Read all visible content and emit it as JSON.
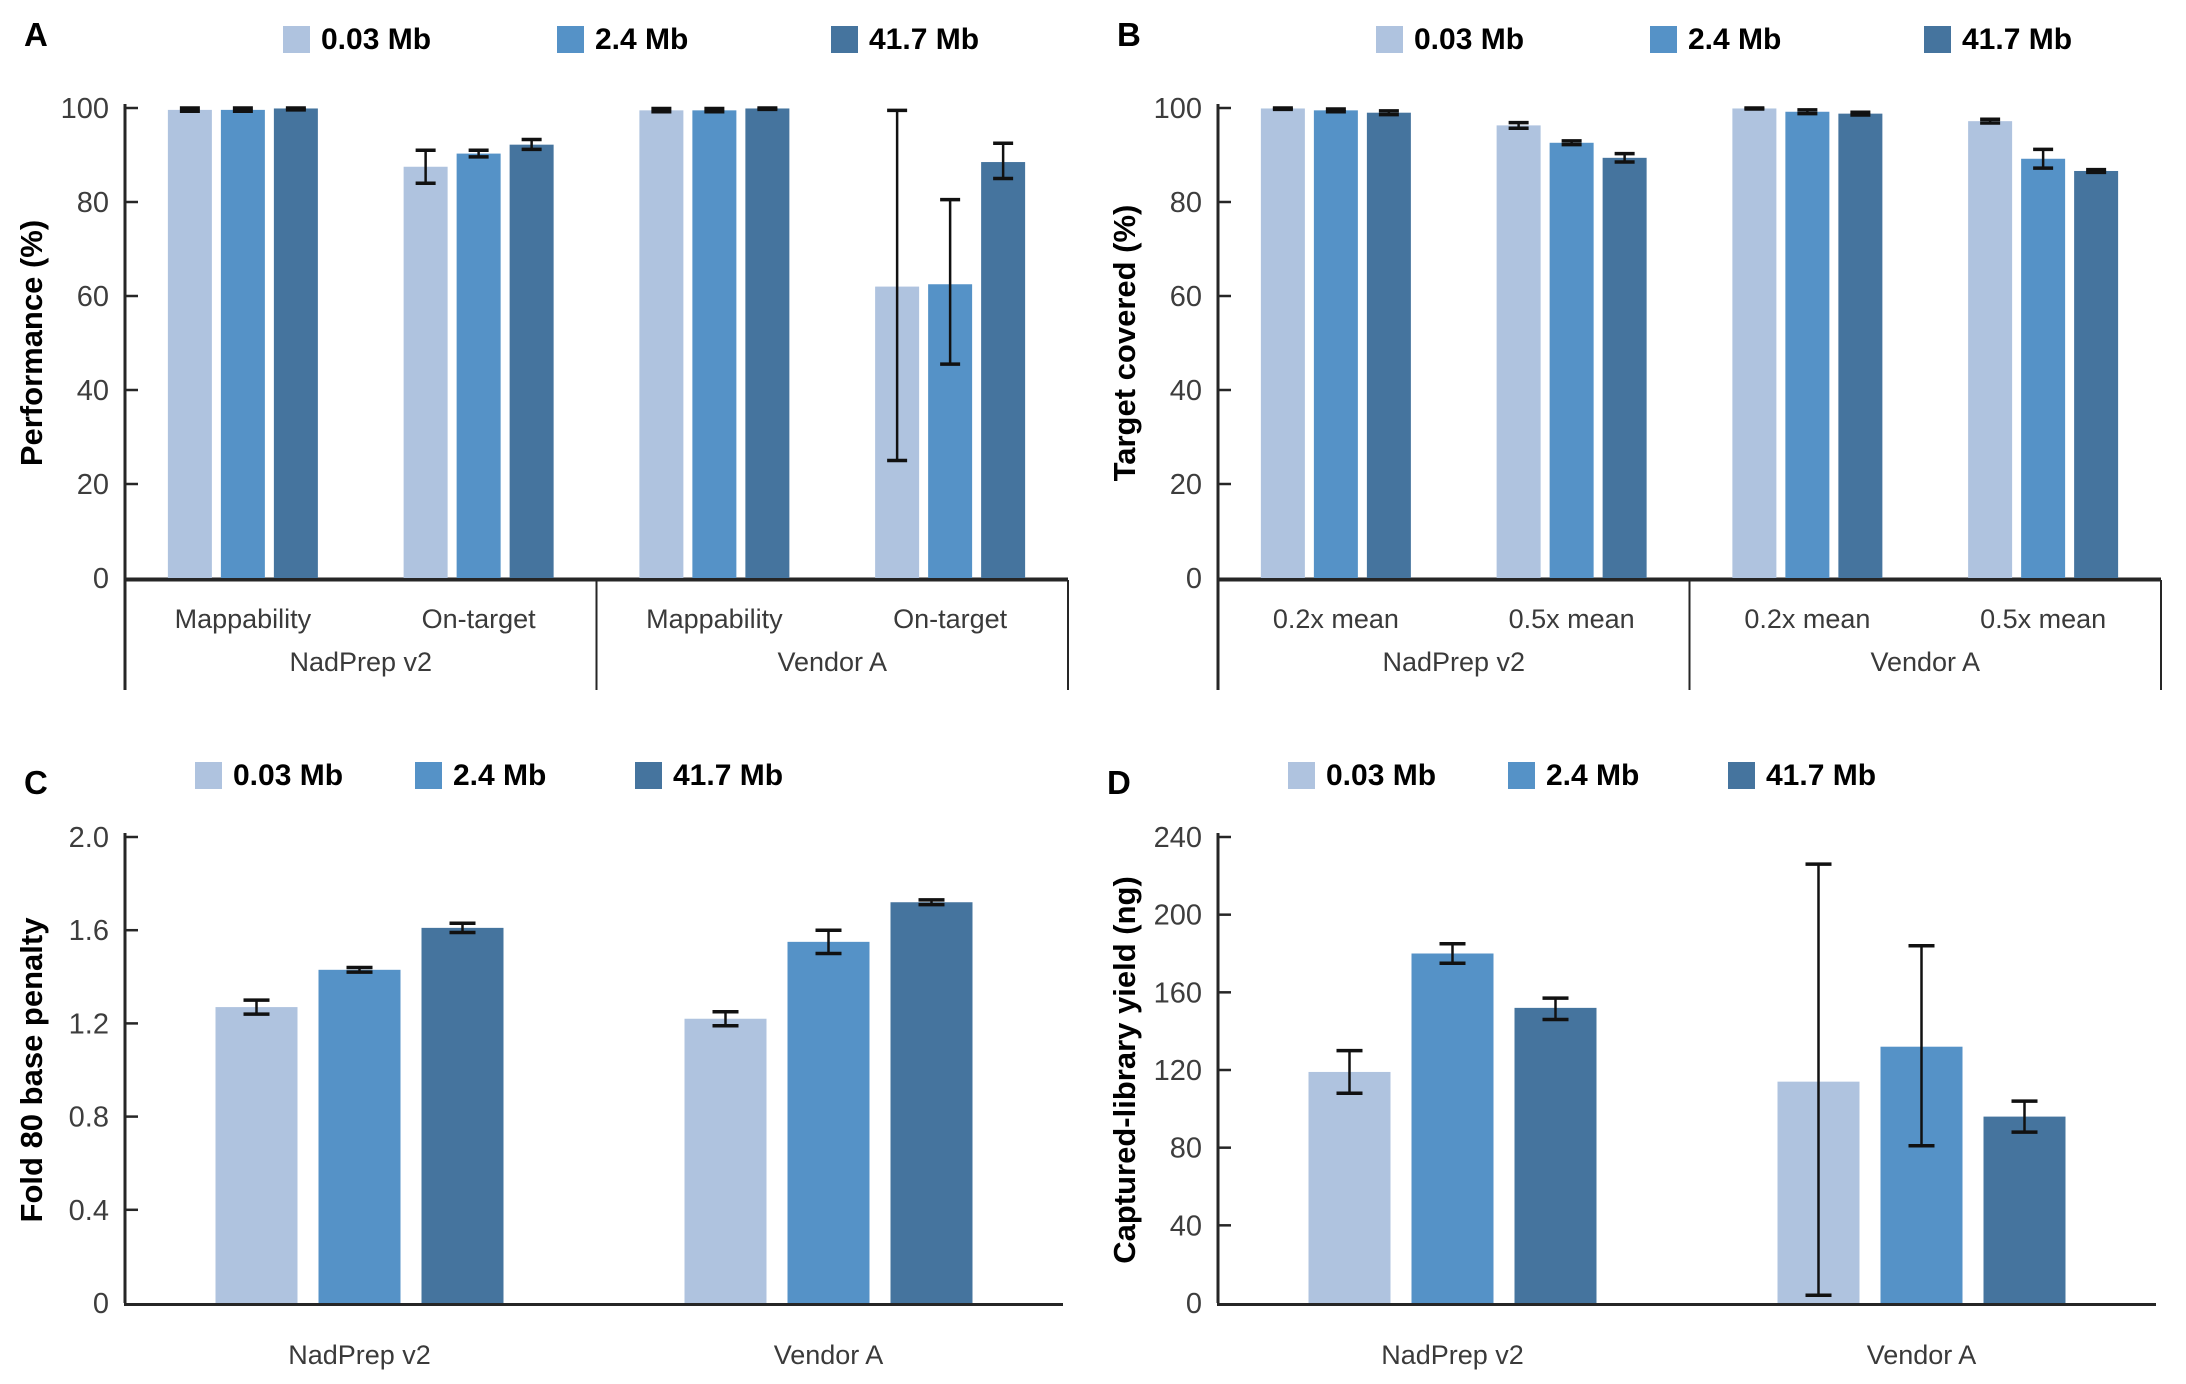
{
  "legend": {
    "items": [
      {
        "label": "0.03 Mb",
        "color": "#AFC3DF"
      },
      {
        "label": "2.4 Mb",
        "color": "#5592C7"
      },
      {
        "label": "41.7 Mb",
        "color": "#45749E"
      }
    ]
  },
  "style": {
    "error_bar_color": "#111111",
    "axis_color": "#262626",
    "tick_text_color": "#3d3d3d",
    "category_text_color": "#3a3a3a",
    "label_text_color": "#000000"
  },
  "chart_data": [
    {
      "id": "A",
      "type": "bar",
      "panel_letter": "A",
      "ylabel": "Performance (%)",
      "ylim": [
        0,
        100
      ],
      "grid": false,
      "legend_position": "top",
      "yticks": [
        {
          "label": "100",
          "value": 100
        },
        {
          "label": "80",
          "value": 80
        },
        {
          "label": "60",
          "value": 60
        },
        {
          "label": "40",
          "value": 40
        },
        {
          "label": "20",
          "value": 20
        },
        {
          "label": "0",
          "value": 0
        }
      ],
      "series": [
        "0.03 Mb",
        "2.4 Mb",
        "41.7 Mb"
      ],
      "axis_style": "two-level",
      "groups": [
        {
          "label": "NadPrep v2",
          "categories": [
            {
              "label": "Mappability",
              "bars": [
                {
                  "series": "0.03 Mb",
                  "value": 99.6,
                  "err_low": 99.3,
                  "err_high": 100
                },
                {
                  "series": "2.4 Mb",
                  "value": 99.6,
                  "err_low": 99.3,
                  "err_high": 100
                },
                {
                  "series": "41.7 Mb",
                  "value": 99.9,
                  "err_low": 99.6,
                  "err_high": 100
                }
              ]
            },
            {
              "label": "On-target",
              "bars": [
                {
                  "series": "0.03 Mb",
                  "value": 87.5,
                  "err_low": 84.0,
                  "err_high": 91.0
                },
                {
                  "series": "2.4 Mb",
                  "value": 90.3,
                  "err_low": 89.6,
                  "err_high": 91.0
                },
                {
                  "series": "41.7 Mb",
                  "value": 92.2,
                  "err_low": 91.2,
                  "err_high": 93.3
                }
              ]
            }
          ]
        },
        {
          "label": "Vendor A",
          "categories": [
            {
              "label": "Mappability",
              "bars": [
                {
                  "series": "0.03 Mb",
                  "value": 99.5,
                  "err_low": 99.2,
                  "err_high": 99.9
                },
                {
                  "series": "2.4 Mb",
                  "value": 99.5,
                  "err_low": 99.2,
                  "err_high": 99.9
                },
                {
                  "series": "41.7 Mb",
                  "value": 99.9,
                  "err_low": 99.7,
                  "err_high": 100
                }
              ]
            },
            {
              "label": "On-target",
              "bars": [
                {
                  "series": "0.03 Mb",
                  "value": 62.0,
                  "err_low": 25.0,
                  "err_high": 99.5
                },
                {
                  "series": "2.4 Mb",
                  "value": 62.5,
                  "err_low": 45.5,
                  "err_high": 80.5
                },
                {
                  "series": "41.7 Mb",
                  "value": 88.5,
                  "err_low": 85.0,
                  "err_high": 92.5
                }
              ]
            }
          ]
        }
      ]
    },
    {
      "id": "B",
      "type": "bar",
      "panel_letter": "B",
      "ylabel": "Target covered (%)",
      "ylim": [
        0,
        100
      ],
      "grid": false,
      "legend_position": "top",
      "yticks": [
        {
          "label": "100",
          "value": 100
        },
        {
          "label": "80",
          "value": 80
        },
        {
          "label": "60",
          "value": 60
        },
        {
          "label": "40",
          "value": 40
        },
        {
          "label": "20",
          "value": 20
        },
        {
          "label": "0",
          "value": 0
        }
      ],
      "series": [
        "0.03 Mb",
        "2.4 Mb",
        "41.7 Mb"
      ],
      "axis_style": "two-level",
      "groups": [
        {
          "label": "NadPrep v2",
          "categories": [
            {
              "label": "0.2x mean",
              "bars": [
                {
                  "series": "0.03 Mb",
                  "value": 99.9,
                  "err_low": 99.7,
                  "err_high": 100
                },
                {
                  "series": "2.4 Mb",
                  "value": 99.5,
                  "err_low": 99.2,
                  "err_high": 99.8
                },
                {
                  "series": "41.7 Mb",
                  "value": 99.0,
                  "err_low": 98.6,
                  "err_high": 99.4
                }
              ]
            },
            {
              "label": "0.5x mean",
              "bars": [
                {
                  "series": "0.03 Mb",
                  "value": 96.3,
                  "err_low": 95.7,
                  "err_high": 96.9
                },
                {
                  "series": "2.4 Mb",
                  "value": 92.6,
                  "err_low": 92.2,
                  "err_high": 93.0
                },
                {
                  "series": "41.7 Mb",
                  "value": 89.4,
                  "err_low": 88.5,
                  "err_high": 90.3
                }
              ]
            }
          ]
        },
        {
          "label": "Vendor A",
          "categories": [
            {
              "label": "0.2x mean",
              "bars": [
                {
                  "series": "0.03 Mb",
                  "value": 99.9,
                  "err_low": 99.8,
                  "err_high": 100
                },
                {
                  "series": "2.4 Mb",
                  "value": 99.2,
                  "err_low": 98.8,
                  "err_high": 99.6
                },
                {
                  "series": "41.7 Mb",
                  "value": 98.8,
                  "err_low": 98.5,
                  "err_high": 99.1
                }
              ]
            },
            {
              "label": "0.5x mean",
              "bars": [
                {
                  "series": "0.03 Mb",
                  "value": 97.2,
                  "err_low": 96.8,
                  "err_high": 97.6
                },
                {
                  "series": "2.4 Mb",
                  "value": 89.2,
                  "err_low": 87.2,
                  "err_high": 91.2
                },
                {
                  "series": "41.7 Mb",
                  "value": 86.6,
                  "err_low": 86.3,
                  "err_high": 86.9
                }
              ]
            }
          ]
        }
      ]
    },
    {
      "id": "C",
      "type": "bar",
      "panel_letter": "C",
      "ylabel": "Fold 80 base penalty",
      "ylim": [
        0,
        2.0
      ],
      "grid": false,
      "legend_position": "top",
      "yticks": [
        {
          "label": "2.0",
          "value": 2.0
        },
        {
          "label": "1.6",
          "value": 1.6
        },
        {
          "label": "1.2",
          "value": 1.2
        },
        {
          "label": "0.8",
          "value": 0.8
        },
        {
          "label": "0.4",
          "value": 0.4
        },
        {
          "label": "0",
          "value": 0
        }
      ],
      "series": [
        "0.03 Mb",
        "2.4 Mb",
        "41.7 Mb"
      ],
      "axis_style": "single",
      "groups": [
        {
          "label": "NadPrep v2",
          "categories": [
            {
              "label": "",
              "bars": [
                {
                  "series": "0.03 Mb",
                  "value": 1.27,
                  "err_low": 1.24,
                  "err_high": 1.3
                },
                {
                  "series": "2.4 Mb",
                  "value": 1.43,
                  "err_low": 1.42,
                  "err_high": 1.44
                },
                {
                  "series": "41.7 Mb",
                  "value": 1.61,
                  "err_low": 1.59,
                  "err_high": 1.63
                }
              ]
            }
          ]
        },
        {
          "label": "Vendor A",
          "categories": [
            {
              "label": "",
              "bars": [
                {
                  "series": "0.03 Mb",
                  "value": 1.22,
                  "err_low": 1.19,
                  "err_high": 1.25
                },
                {
                  "series": "2.4 Mb",
                  "value": 1.55,
                  "err_low": 1.5,
                  "err_high": 1.6
                },
                {
                  "series": "41.7 Mb",
                  "value": 1.72,
                  "err_low": 1.71,
                  "err_high": 1.73
                }
              ]
            }
          ]
        }
      ]
    },
    {
      "id": "D",
      "type": "bar",
      "panel_letter": "D",
      "ylabel": "Captured-library yield (ng)",
      "ylim": [
        0,
        240
      ],
      "grid": false,
      "legend_position": "top",
      "yticks": [
        {
          "label": "240",
          "value": 240
        },
        {
          "label": "200",
          "value": 200
        },
        {
          "label": "160",
          "value": 160
        },
        {
          "label": "120",
          "value": 120
        },
        {
          "label": "80",
          "value": 80
        },
        {
          "label": "40",
          "value": 40
        },
        {
          "label": "0",
          "value": 0
        }
      ],
      "series": [
        "0.03 Mb",
        "2.4 Mb",
        "41.7 Mb"
      ],
      "axis_style": "single",
      "groups": [
        {
          "label": "NadPrep v2",
          "categories": [
            {
              "label": "",
              "bars": [
                {
                  "series": "0.03 Mb",
                  "value": 119,
                  "err_low": 108,
                  "err_high": 130
                },
                {
                  "series": "2.4 Mb",
                  "value": 180,
                  "err_low": 175,
                  "err_high": 185
                },
                {
                  "series": "41.7 Mb",
                  "value": 152,
                  "err_low": 146,
                  "err_high": 157
                }
              ]
            }
          ]
        },
        {
          "label": "Vendor A",
          "categories": [
            {
              "label": "",
              "bars": [
                {
                  "series": "0.03 Mb",
                  "value": 114,
                  "err_low": 4,
                  "err_high": 226
                },
                {
                  "series": "2.4 Mb",
                  "value": 132,
                  "err_low": 81,
                  "err_high": 184
                },
                {
                  "series": "41.7 Mb",
                  "value": 96,
                  "err_low": 88,
                  "err_high": 104
                }
              ]
            }
          ]
        }
      ]
    }
  ]
}
